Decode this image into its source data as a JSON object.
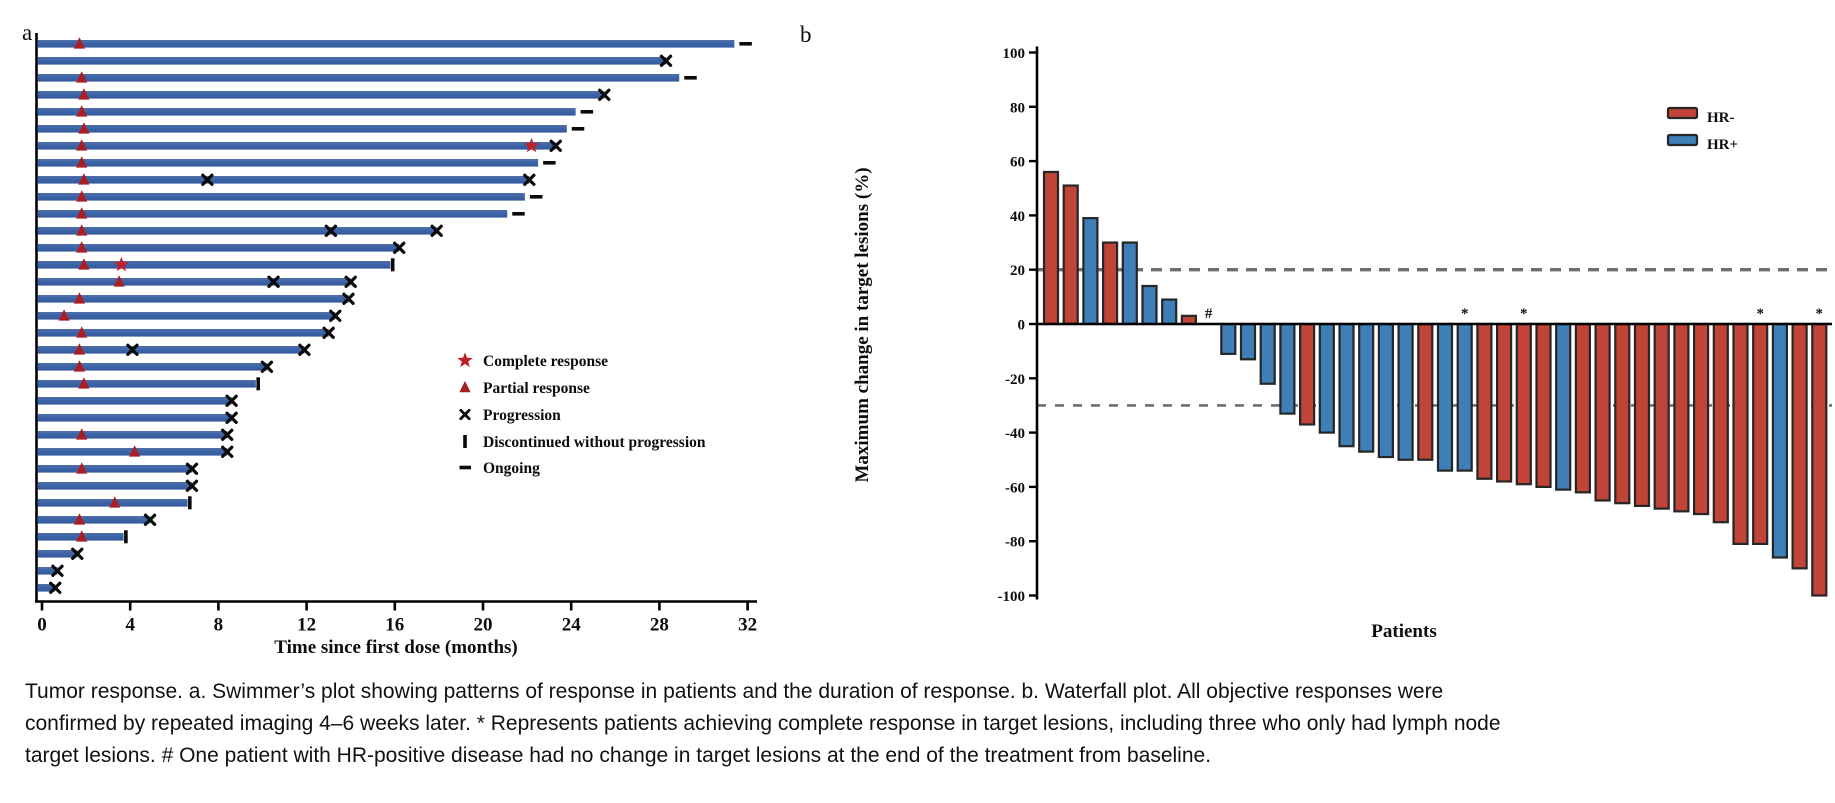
{
  "caption": "Tumor response. a. Swimmer’s plot showing patterns of response in patients and the duration of response. b. Waterfall plot. All objective responses were confirmed by repeated imaging 4–6 weeks later. * Represents patients achieving complete response in target lesions, including three who only had lymph node target lesions. # One patient with HR-positive disease had no change in target lesions at the end of the treatment from baseline.",
  "colors": {
    "swimmer_bar": "#3c63a7",
    "swimmer_bar_light": "#4f6fa8",
    "swimmer_bar_dark": "#35599b",
    "triangle_red": "#aa1f24",
    "star_red": "#c02027",
    "black_marker": "#0a0a0a",
    "hr_neg_red": "#c04437",
    "hr_pos_blue": "#3e7fb7",
    "bar_stroke": "#262626",
    "dash_gray": "#6e6e6e",
    "axis_black": "#000000"
  },
  "chart_data": [
    {
      "type": "swimmer",
      "panel_label": "a",
      "xlabel": "Time since first dose (months)",
      "x_ticks": [
        0,
        4,
        8,
        12,
        16,
        20,
        24,
        28,
        32
      ],
      "x_unit": "months",
      "xlim": [
        0,
        32.4
      ],
      "legend": [
        {
          "marker": "star",
          "label": "Complete response"
        },
        {
          "marker": "triangle",
          "label": "Partial response"
        },
        {
          "marker": "x",
          "label": "Progression"
        },
        {
          "marker": "bar",
          "label": "Discontinued without progression"
        },
        {
          "marker": "dash",
          "label": "Ongoing"
        }
      ],
      "rows": [
        {
          "len": 31.4,
          "tri": 1.7,
          "star": null,
          "prog": null,
          "end": "ongoing"
        },
        {
          "len": 28.3,
          "tri": null,
          "star": null,
          "prog": null,
          "end": "prog"
        },
        {
          "len": 28.9,
          "tri": 1.8,
          "star": null,
          "prog": null,
          "end": "ongoing"
        },
        {
          "len": 25.5,
          "tri": 1.9,
          "star": null,
          "prog": null,
          "end": "prog"
        },
        {
          "len": 24.2,
          "tri": 1.8,
          "star": null,
          "prog": null,
          "end": "ongoing"
        },
        {
          "len": 23.8,
          "tri": 1.9,
          "star": null,
          "prog": null,
          "end": "ongoing"
        },
        {
          "len": 23.3,
          "tri": 1.8,
          "star": 22.2,
          "prog": null,
          "end": "prog"
        },
        {
          "len": 22.5,
          "tri": 1.8,
          "star": null,
          "prog": null,
          "end": "ongoing"
        },
        {
          "len": 22.1,
          "tri": 1.9,
          "star": null,
          "prog": 7.5,
          "end": "prog"
        },
        {
          "len": 21.9,
          "tri": 1.8,
          "star": null,
          "prog": null,
          "end": "ongoing"
        },
        {
          "len": 21.1,
          "tri": 1.8,
          "star": null,
          "prog": null,
          "end": "ongoing"
        },
        {
          "len": 17.9,
          "tri": 1.8,
          "star": null,
          "prog": 13.1,
          "end": "prog"
        },
        {
          "len": 16.2,
          "tri": 1.8,
          "star": null,
          "prog": null,
          "end": "prog"
        },
        {
          "len": 15.8,
          "tri": 1.9,
          "star": 3.6,
          "prog": null,
          "end": "disc"
        },
        {
          "len": 14.0,
          "tri": 3.5,
          "star": null,
          "prog": 10.5,
          "end": "prog"
        },
        {
          "len": 13.9,
          "tri": 1.7,
          "star": null,
          "prog": null,
          "end": "prog"
        },
        {
          "len": 13.3,
          "tri": 1.0,
          "star": null,
          "prog": null,
          "end": "prog"
        },
        {
          "len": 13.0,
          "tri": 1.8,
          "star": null,
          "prog": null,
          "end": "prog"
        },
        {
          "len": 11.9,
          "tri": 1.7,
          "star": null,
          "prog": 4.1,
          "end": "prog"
        },
        {
          "len": 10.2,
          "tri": 1.7,
          "star": null,
          "prog": null,
          "end": "prog"
        },
        {
          "len": 9.7,
          "tri": 1.9,
          "star": null,
          "prog": null,
          "end": "disc"
        },
        {
          "len": 8.6,
          "tri": null,
          "star": null,
          "prog": null,
          "end": "prog"
        },
        {
          "len": 8.6,
          "tri": null,
          "star": null,
          "prog": null,
          "end": "prog"
        },
        {
          "len": 8.4,
          "tri": 1.8,
          "star": null,
          "prog": null,
          "end": "prog"
        },
        {
          "len": 8.4,
          "tri": 4.2,
          "star": null,
          "prog": null,
          "end": "prog"
        },
        {
          "len": 6.8,
          "tri": 1.8,
          "star": null,
          "prog": null,
          "end": "prog"
        },
        {
          "len": 6.8,
          "tri": null,
          "star": null,
          "prog": null,
          "end": "prog"
        },
        {
          "len": 6.6,
          "tri": 3.3,
          "star": null,
          "prog": null,
          "end": "disc"
        },
        {
          "len": 4.9,
          "tri": 1.7,
          "star": null,
          "prog": null,
          "end": "prog"
        },
        {
          "len": 3.7,
          "tri": 1.8,
          "star": null,
          "prog": null,
          "end": "disc"
        },
        {
          "len": 1.6,
          "tri": null,
          "star": null,
          "prog": null,
          "end": "prog"
        },
        {
          "len": 0.7,
          "tri": null,
          "star": null,
          "prog": null,
          "end": "prog"
        },
        {
          "len": 0.6,
          "tri": null,
          "star": null,
          "prog": null,
          "end": "prog"
        }
      ]
    },
    {
      "type": "waterfall",
      "panel_label": "b",
      "ylabel": "Maximum change in target lesions (%)",
      "xlabel": "Patients",
      "y_ticks": [
        100,
        80,
        60,
        40,
        20,
        0,
        -20,
        -40,
        -60,
        -80,
        -100
      ],
      "ylim": [
        -100,
        100
      ],
      "ref_lines": [
        20,
        -30
      ],
      "legend": [
        {
          "label": "HR-",
          "color_key": "hr_neg_red"
        },
        {
          "label": "HR+",
          "color_key": "hr_pos_blue"
        }
      ],
      "annotations": {
        "complete_response_mark": "*",
        "no_change_mark": "#"
      },
      "bars": [
        {
          "v": 56,
          "hr": "-"
        },
        {
          "v": 51,
          "hr": "-"
        },
        {
          "v": 39,
          "hr": "+"
        },
        {
          "v": 30,
          "hr": "-"
        },
        {
          "v": 30,
          "hr": "+"
        },
        {
          "v": 14,
          "hr": "+"
        },
        {
          "v": 9,
          "hr": "+"
        },
        {
          "v": 3,
          "hr": "-"
        },
        {
          "v": 0,
          "hr": "+",
          "mark": "#"
        },
        {
          "v": -11,
          "hr": "+"
        },
        {
          "v": -13,
          "hr": "+"
        },
        {
          "v": -22,
          "hr": "+"
        },
        {
          "v": -33,
          "hr": "+"
        },
        {
          "v": -37,
          "hr": "-"
        },
        {
          "v": -40,
          "hr": "+"
        },
        {
          "v": -45,
          "hr": "+"
        },
        {
          "v": -47,
          "hr": "+"
        },
        {
          "v": -49,
          "hr": "+"
        },
        {
          "v": -50,
          "hr": "+"
        },
        {
          "v": -50,
          "hr": "-"
        },
        {
          "v": -54,
          "hr": "+"
        },
        {
          "v": -54,
          "hr": "+",
          "mark": "*"
        },
        {
          "v": -57,
          "hr": "-"
        },
        {
          "v": -58,
          "hr": "-"
        },
        {
          "v": -59,
          "hr": "-",
          "mark": "*"
        },
        {
          "v": -60,
          "hr": "-"
        },
        {
          "v": -61,
          "hr": "+"
        },
        {
          "v": -62,
          "hr": "-"
        },
        {
          "v": -65,
          "hr": "-"
        },
        {
          "v": -66,
          "hr": "-"
        },
        {
          "v": -67,
          "hr": "-"
        },
        {
          "v": -68,
          "hr": "-"
        },
        {
          "v": -69,
          "hr": "-"
        },
        {
          "v": -70,
          "hr": "-"
        },
        {
          "v": -73,
          "hr": "-"
        },
        {
          "v": -81,
          "hr": "-"
        },
        {
          "v": -81,
          "hr": "-",
          "mark": "*"
        },
        {
          "v": -86,
          "hr": "+"
        },
        {
          "v": -90,
          "hr": "-"
        },
        {
          "v": -100,
          "hr": "-",
          "mark": "*"
        }
      ]
    }
  ]
}
